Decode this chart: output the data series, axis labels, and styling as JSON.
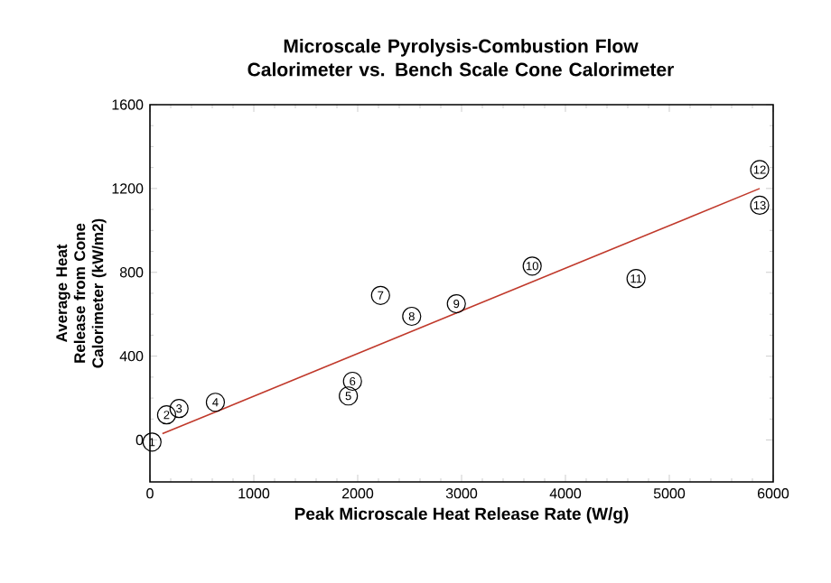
{
  "chart_data": {
    "type": "scatter",
    "title": "Microscale Pyrolysis-Combustion Flow Calorimeter vs. Bench Scale Cone Calorimeter",
    "xlabel": "Peak Microscale Heat Release Rate (W/g)",
    "ylabel": "Average Heat Release from Cone Calorimeter (kW/m2)",
    "xlim": [
      0,
      6000
    ],
    "ylim": [
      -200,
      1600
    ],
    "xticks": [
      0,
      1000,
      2000,
      3000,
      4000,
      5000,
      6000
    ],
    "yticks": [
      0,
      400,
      800,
      1200,
      1600
    ],
    "series": [
      {
        "marker": "circle",
        "color": "#000000",
        "x": [
          20,
          160,
          280,
          630,
          1910,
          1950,
          2220,
          2520,
          2950,
          3680,
          4680,
          5870,
          5870
        ],
        "values": [
          -10,
          120,
          150,
          180,
          210,
          280,
          690,
          590,
          650,
          830,
          770,
          1290,
          1120
        ]
      },
      {
        "type": "line",
        "marker": "none",
        "color": "#c0392b",
        "x": [
          120,
          5870
        ],
        "values": [
          30,
          1200
        ]
      }
    ],
    "annotations": [
      {
        "text": "1",
        "x": 20,
        "y": -10
      },
      {
        "text": "2",
        "x": 160,
        "y": 120
      },
      {
        "text": "3",
        "x": 280,
        "y": 150
      },
      {
        "text": "4",
        "x": 630,
        "y": 180
      },
      {
        "text": "5",
        "x": 1910,
        "y": 210
      },
      {
        "text": "6",
        "x": 1950,
        "y": 280
      },
      {
        "text": "7",
        "x": 2220,
        "y": 690
      },
      {
        "text": "8",
        "x": 2520,
        "y": 590
      },
      {
        "text": "9",
        "x": 2950,
        "y": 650
      },
      {
        "text": "10",
        "x": 3680,
        "y": 830
      },
      {
        "text": "11",
        "x": 4680,
        "y": 770
      },
      {
        "text": "12",
        "x": 5870,
        "y": 1290
      },
      {
        "text": "13",
        "x": 5870,
        "y": 1120
      }
    ]
  }
}
